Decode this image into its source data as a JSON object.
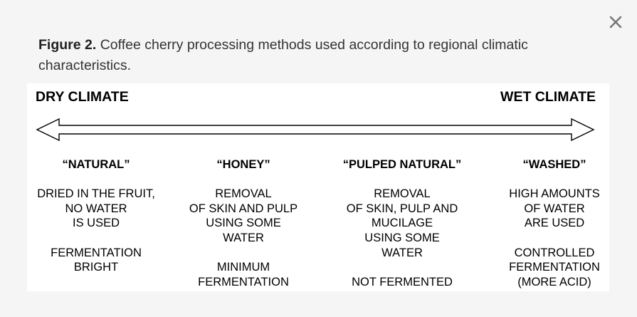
{
  "dialog": {
    "close_symbol": "×"
  },
  "caption": {
    "label": "Figure 2.",
    "text": "Coffee cherry processing methods used according to regional climatic characteristics."
  },
  "figure": {
    "dry_label": "DRY CLIMATE",
    "wet_label": "WET CLIMATE",
    "columns": [
      {
        "title": "“NATURAL”",
        "lines": [
          "DRIED IN THE FRUIT,",
          "NO WATER",
          "IS USED",
          "",
          "FERMENTATION",
          "BRIGHT"
        ]
      },
      {
        "title": "“HONEY”",
        "lines": [
          "REMOVAL",
          "OF SKIN AND PULP",
          "USING SOME",
          "WATER",
          "",
          "MINIMUM",
          "FERMENTATION"
        ]
      },
      {
        "title": "“PULPED NATURAL”",
        "lines": [
          "REMOVAL",
          "OF SKIN, PULP AND",
          "MUCILAGE",
          "USING SOME",
          "WATER",
          "",
          "NOT FERMENTED"
        ]
      },
      {
        "title": "“WASHED”",
        "lines": [
          "HIGH AMOUNTS",
          "OF WATER",
          "ARE USED",
          "",
          "CONTROLLED",
          "FERMENTATION",
          "(MORE ACID)"
        ]
      }
    ]
  }
}
